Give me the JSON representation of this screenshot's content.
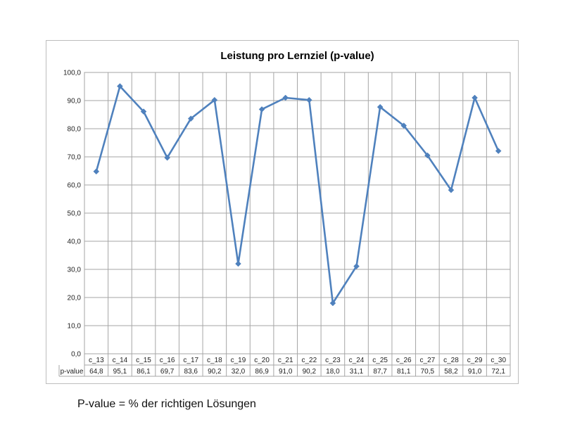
{
  "chart_data": {
    "type": "line",
    "title": "Leistung pro Lernziel (p-value)",
    "categories": [
      "c_13",
      "c_14",
      "c_15",
      "c_16",
      "c_17",
      "c_18",
      "c_19",
      "c_20",
      "c_21",
      "c_22",
      "c_23",
      "c_24",
      "c_25",
      "c_26",
      "c_27",
      "c_28",
      "c_29",
      "c_30"
    ],
    "series": [
      {
        "name": "p-value",
        "values": [
          64.8,
          95.1,
          86.1,
          69.7,
          83.6,
          90.2,
          32.0,
          86.9,
          91.0,
          90.2,
          18.0,
          31.1,
          87.7,
          81.1,
          70.5,
          58.2,
          91.0,
          72.1
        ],
        "value_labels": [
          "64,8",
          "95,1",
          "86,1",
          "69,7",
          "83,6",
          "90,2",
          "32,0",
          "86,9",
          "91,0",
          "90,2",
          "18,0",
          "31,1",
          "87,7",
          "81,1",
          "70,5",
          "58,2",
          "91,0",
          "72,1"
        ]
      }
    ],
    "ylim": [
      0,
      100
    ],
    "yticks": [
      0,
      10,
      20,
      30,
      40,
      50,
      60,
      70,
      80,
      90,
      100
    ],
    "ytick_labels": [
      "0,0",
      "10,0",
      "20,0",
      "30,0",
      "40,0",
      "50,0",
      "60,0",
      "70,0",
      "80,0",
      "90,0",
      "100,0"
    ],
    "grid": true,
    "data_table": true,
    "line_color": "#4f81bd",
    "grid_color": "#a6a6a6"
  },
  "footnote": "P-value = % der richtigen Lösungen"
}
